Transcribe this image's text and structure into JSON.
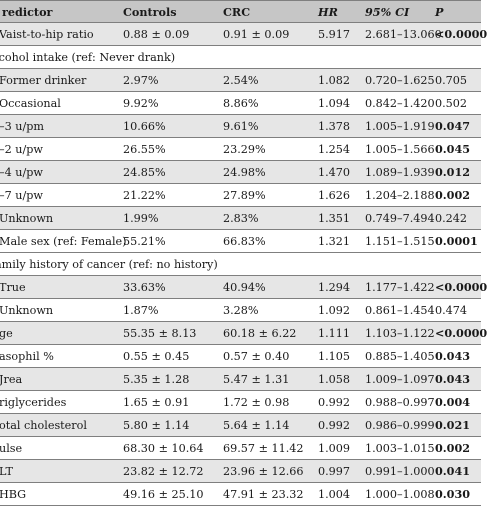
{
  "table": {
    "headers": [
      "redictor",
      "Controls",
      "CRC",
      "HR",
      "95% CI",
      "P"
    ],
    "rows": [
      {
        "style": "shade",
        "cells": [
          "Vaist-to-hip ratio",
          "0.88 ± 0.09",
          "0.91 ± 0.09",
          "5.917",
          "2.681–13.060",
          "<0.0000"
        ],
        "pbold": true
      },
      {
        "style": "group",
        "section": "lcohol intake (ref: Never drank)"
      },
      {
        "style": "shade",
        "cells": [
          "Former drinker",
          "2.97%",
          "2.54%",
          "1.082",
          "0.720–1.625",
          "0.705"
        ],
        "pbold": false
      },
      {
        "style": "plain",
        "cells": [
          "Occasional",
          "9.92%",
          "8.86%",
          "1.094",
          "0.842–1.420",
          "0.502"
        ],
        "pbold": false
      },
      {
        "style": "shade",
        "cells": [
          "–3 u/pm",
          "10.66%",
          "9.61%",
          "1.378",
          "1.005–1.919",
          "0.047"
        ],
        "pbold": true
      },
      {
        "style": "plain",
        "cells": [
          "–2 u/pw",
          "26.55%",
          "23.29%",
          "1.254",
          "1.005–1.566",
          "0.045"
        ],
        "pbold": true
      },
      {
        "style": "shade",
        "cells": [
          "–4 u/pw",
          "24.85%",
          "24.98%",
          "1.470",
          "1.089–1.939",
          "0.012"
        ],
        "pbold": true
      },
      {
        "style": "plain",
        "cells": [
          "–7 u/pw",
          "21.22%",
          "27.89%",
          "1.626",
          "1.204–2.188",
          "0.002"
        ],
        "pbold": true
      },
      {
        "style": "shade",
        "cells": [
          "Unknown",
          "1.99%",
          "2.83%",
          "1.351",
          "0.749–7.494",
          "0.242"
        ],
        "pbold": false
      },
      {
        "style": "plain",
        "cells": [
          "Male sex (ref: Female)",
          "55.21%",
          "66.83%",
          "1.321",
          "1.151–1.515",
          "0.0001"
        ],
        "pbold": true
      },
      {
        "style": "group",
        "section": "amily history of cancer (ref: no history)"
      },
      {
        "style": "shade",
        "cells": [
          "True",
          "33.63%",
          "40.94%",
          "1.294",
          "1.177–1.422",
          "<0.0000"
        ],
        "pbold": true
      },
      {
        "style": "plain",
        "cells": [
          "Unknown",
          "1.87%",
          "3.28%",
          "1.092",
          "0.861–1.454",
          "0.474"
        ],
        "pbold": false
      },
      {
        "style": "shade",
        "cells": [
          "ge",
          "55.35 ± 8.13",
          "60.18 ± 6.22",
          "1.111",
          "1.103–1.122",
          "<0.0000"
        ],
        "pbold": true
      },
      {
        "style": "plain",
        "cells": [
          "asophil %",
          "0.55 ± 0.45",
          "0.57 ± 0.40",
          "1.105",
          "0.885–1.405",
          "0.043"
        ],
        "pbold": true
      },
      {
        "style": "shade",
        "cells": [
          "Jrea",
          "5.35 ± 1.28",
          "5.47 ± 1.31",
          "1.058",
          "1.009–1.097",
          "0.043"
        ],
        "pbold": true
      },
      {
        "style": "plain",
        "cells": [
          "riglycerides",
          "1.65 ± 0.91",
          "1.72 ± 0.98",
          "0.992",
          "0.988–0.997",
          "0.004"
        ],
        "pbold": true
      },
      {
        "style": "shade",
        "cells": [
          "otal cholesterol",
          "5.80 ± 1.14",
          "5.64 ± 1.14",
          "0.992",
          "0.986–0.999",
          "0.021"
        ],
        "pbold": true
      },
      {
        "style": "plain",
        "cells": [
          "ulse",
          "68.30 ± 10.64",
          "69.57 ± 11.42",
          "1.009",
          "1.003–1.015",
          "0.002"
        ],
        "pbold": true
      },
      {
        "style": "shade",
        "cells": [
          "LT",
          "23.82 ± 12.72",
          "23.96 ± 12.66",
          "0.997",
          "0.991–1.000",
          "0.041"
        ],
        "pbold": true
      },
      {
        "style": "plain",
        "cells": [
          "HBG",
          "49.16 ± 25.10",
          "47.91 ± 23.32",
          "1.004",
          "1.000–1.008",
          "0.030"
        ],
        "pbold": true
      }
    ]
  }
}
